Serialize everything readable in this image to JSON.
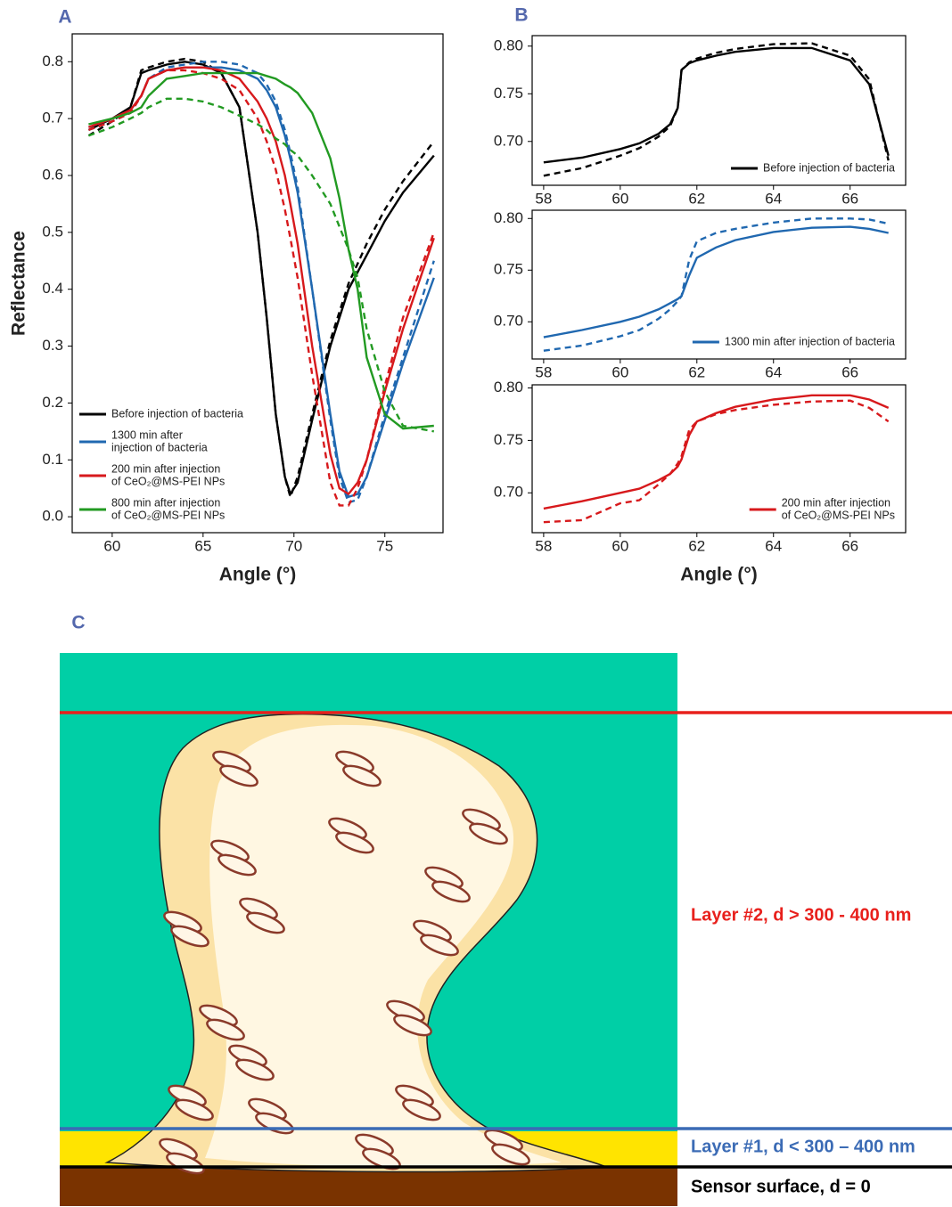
{
  "panel_labels": [
    "A",
    "B",
    "C"
  ],
  "chart_data": [
    {
      "type": "line",
      "xlabel": "Angle (°)",
      "ylabel": "Reflectance",
      "legend": "lower left",
      "xlim": [
        57.8,
        78.2
      ],
      "ylim": [
        -0.028,
        0.849
      ],
      "xticks": [
        60,
        65,
        70,
        75
      ],
      "yticks": [
        {
          "value": 0,
          "label": "0.0"
        },
        0.1,
        0.2,
        0.3,
        0.4,
        0.5,
        0.6,
        0.7,
        0.8
      ],
      "x": [
        58.7,
        60,
        61,
        61.6,
        62,
        63,
        64,
        65,
        66,
        67,
        68,
        68.5,
        69,
        69.5,
        69.8,
        70.2,
        71,
        72,
        72.5,
        73,
        73.5,
        74,
        75,
        76,
        77.7
      ],
      "series": [
        {
          "name": [
            "Before injection of bacteria"
          ],
          "color": "#000000",
          "values": [
            0.68,
            0.7,
            0.72,
            0.78,
            0.785,
            0.795,
            0.8,
            0.795,
            0.78,
            0.72,
            0.5,
            0.35,
            0.18,
            0.07,
            0.04,
            0.06,
            0.17,
            0.3,
            0.35,
            0.4,
            0.43,
            0.46,
            0.52,
            0.57,
            0.635
          ],
          "dashed_values": [
            0.67,
            0.695,
            0.72,
            0.785,
            0.79,
            0.8,
            0.805,
            0.8,
            0.78,
            0.72,
            0.5,
            0.35,
            0.18,
            0.07,
            0.035,
            0.07,
            0.18,
            0.31,
            0.36,
            0.41,
            0.445,
            0.48,
            0.54,
            0.59,
            0.66
          ]
        },
        {
          "name": [
            "1300 min after",
            "injection of bacteria"
          ],
          "color": "#2068b0",
          "values": [
            0.685,
            0.7,
            0.715,
            0.74,
            0.77,
            0.785,
            0.79,
            0.79,
            0.79,
            0.785,
            0.77,
            0.75,
            0.72,
            0.67,
            0.63,
            0.57,
            0.4,
            0.18,
            0.08,
            0.035,
            0.04,
            0.07,
            0.17,
            0.27,
            0.42
          ],
          "dashed_values": [
            0.68,
            0.695,
            0.71,
            0.74,
            0.77,
            0.79,
            0.795,
            0.8,
            0.8,
            0.795,
            0.78,
            0.76,
            0.73,
            0.68,
            0.64,
            0.58,
            0.4,
            0.17,
            0.07,
            0.025,
            0.03,
            0.07,
            0.18,
            0.28,
            0.45
          ]
        },
        {
          "name": [
            "200 min after injection",
            "of CeO₂@MS-PEI NPs"
          ],
          "color": "#d7191c",
          "values": [
            0.685,
            0.7,
            0.715,
            0.74,
            0.77,
            0.785,
            0.79,
            0.79,
            0.785,
            0.77,
            0.73,
            0.7,
            0.66,
            0.6,
            0.55,
            0.48,
            0.3,
            0.11,
            0.05,
            0.04,
            0.06,
            0.1,
            0.22,
            0.33,
            0.49
          ],
          "dashed_values": [
            0.68,
            0.695,
            0.71,
            0.74,
            0.77,
            0.785,
            0.785,
            0.78,
            0.77,
            0.75,
            0.7,
            0.66,
            0.61,
            0.54,
            0.49,
            0.42,
            0.25,
            0.06,
            0.02,
            0.02,
            0.05,
            0.1,
            0.23,
            0.35,
            0.5
          ]
        },
        {
          "name": [
            "800 min after injection",
            "of CeO₂@MS-PEI NPs"
          ],
          "color": "#229a22",
          "values": [
            0.69,
            0.7,
            0.71,
            0.72,
            0.74,
            0.77,
            0.775,
            0.78,
            0.78,
            0.78,
            0.78,
            0.775,
            0.77,
            0.76,
            0.755,
            0.745,
            0.71,
            0.63,
            0.56,
            0.47,
            0.4,
            0.28,
            0.18,
            0.155,
            0.16
          ],
          "dashed_values": [
            0.67,
            0.685,
            0.7,
            0.71,
            0.72,
            0.735,
            0.735,
            0.73,
            0.72,
            0.705,
            0.69,
            0.68,
            0.665,
            0.655,
            0.645,
            0.635,
            0.6,
            0.55,
            0.51,
            0.47,
            0.42,
            0.33,
            0.22,
            0.16,
            0.15
          ]
        }
      ]
    },
    {
      "type": "line",
      "legend": "lower right",
      "xlim": [
        57.7,
        67.45
      ],
      "ylim": [
        0.654,
        0.811
      ],
      "xticks": [
        58,
        60,
        62,
        64,
        66
      ],
      "yticks": [
        {
          "value": 0.7,
          "label": "0.70"
        },
        0.75,
        {
          "value": 0.8,
          "label": "0.80"
        }
      ],
      "x": [
        58,
        59,
        60,
        60.5,
        61,
        61.3,
        61.5,
        61.6,
        61.8,
        62,
        62.5,
        63,
        64,
        65,
        66,
        66.5,
        67
      ],
      "series": [
        {
          "name": [
            "Before injection of bacteria"
          ],
          "color": "#000000",
          "values": [
            0.678,
            0.683,
            0.692,
            0.698,
            0.708,
            0.718,
            0.735,
            0.775,
            0.782,
            0.785,
            0.79,
            0.794,
            0.798,
            0.798,
            0.785,
            0.76,
            0.685
          ],
          "dashed_values": [
            0.664,
            0.672,
            0.685,
            0.693,
            0.705,
            0.716,
            0.735,
            0.775,
            0.783,
            0.787,
            0.793,
            0.797,
            0.802,
            0.803,
            0.79,
            0.765,
            0.68
          ]
        }
      ]
    },
    {
      "type": "line",
      "legend": "lower right",
      "xlim": [
        57.7,
        67.45
      ],
      "ylim": [
        0.664,
        0.808
      ],
      "xticks": [
        58,
        60,
        62,
        64,
        66
      ],
      "yticks": [
        {
          "value": 0.7,
          "label": "0.70"
        },
        0.75,
        {
          "value": 0.8,
          "label": "0.80"
        }
      ],
      "x": [
        58,
        59,
        60,
        60.5,
        61,
        61.3,
        61.5,
        61.6,
        61.8,
        62,
        62.5,
        63,
        64,
        65,
        66,
        66.5,
        67
      ],
      "series": [
        {
          "name": [
            "1300 min after injection of bacteria"
          ],
          "color": "#2068b0",
          "values": [
            0.685,
            0.692,
            0.7,
            0.705,
            0.712,
            0.718,
            0.722,
            0.725,
            0.745,
            0.762,
            0.772,
            0.779,
            0.787,
            0.791,
            0.792,
            0.79,
            0.786
          ],
          "dashed_values": [
            0.672,
            0.677,
            0.686,
            0.692,
            0.703,
            0.712,
            0.72,
            0.725,
            0.76,
            0.778,
            0.786,
            0.79,
            0.796,
            0.8,
            0.8,
            0.799,
            0.795
          ]
        }
      ]
    },
    {
      "type": "line",
      "legend": "lower right",
      "xlabel": "Angle (°)",
      "xlim": [
        57.7,
        67.45
      ],
      "ylim": [
        0.662,
        0.803
      ],
      "xticks": [
        58,
        60,
        62,
        64,
        66
      ],
      "yticks": [
        {
          "value": 0.7,
          "label": "0.70"
        },
        0.75,
        {
          "value": 0.8,
          "label": "0.80"
        }
      ],
      "x": [
        58,
        59,
        60,
        60.5,
        61,
        61.3,
        61.5,
        61.6,
        61.8,
        62,
        62.5,
        63,
        64,
        65,
        66,
        66.5,
        67
      ],
      "series": [
        {
          "name": [
            "200 min after injection",
            "of CeO₂@MS-PEI NPs"
          ],
          "color": "#d7191c",
          "values": [
            0.685,
            0.692,
            0.7,
            0.704,
            0.712,
            0.718,
            0.725,
            0.732,
            0.755,
            0.768,
            0.776,
            0.782,
            0.789,
            0.793,
            0.793,
            0.789,
            0.781
          ],
          "dashed_values": [
            0.672,
            0.674,
            0.69,
            0.693,
            0.708,
            0.718,
            0.728,
            0.735,
            0.76,
            0.768,
            0.775,
            0.779,
            0.784,
            0.787,
            0.788,
            0.781,
            0.768
          ]
        }
      ]
    }
  ],
  "diagram": {
    "layers": [
      {
        "label": "Layer #2, d > 300 - 400 nm",
        "color": "#e8201c"
      },
      {
        "label": "Layer #1, d < 300 – 400 nm",
        "color": "#3b6bb5"
      },
      {
        "label": "Sensor surface, d = 0",
        "color": "#000000"
      }
    ]
  }
}
